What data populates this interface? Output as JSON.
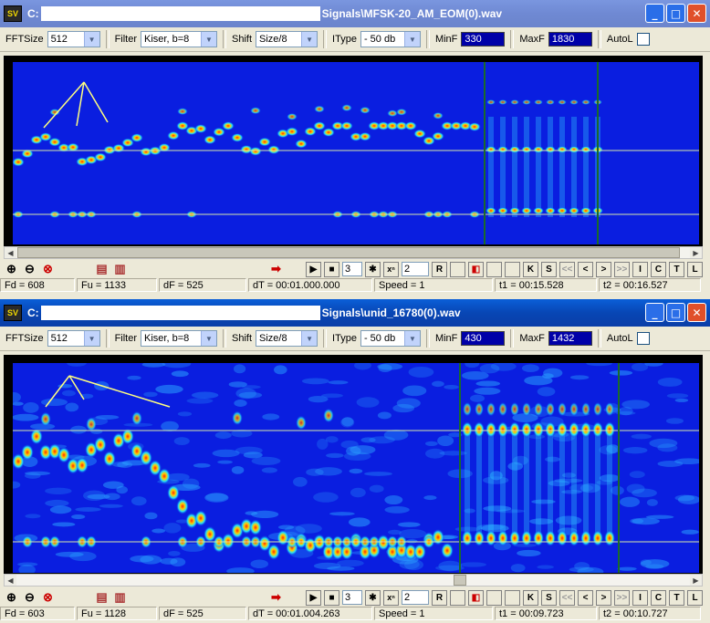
{
  "windows": [
    {
      "title_prefix": "C:",
      "title_file": "Signals\\MFSK-20_AM_EOM(0).wav",
      "fftsize_label": "FFTSize",
      "fftsize_value": "512",
      "filter_label": "Filter",
      "filter_value": "Kiser, b=8",
      "shift_label": "Shift",
      "shift_value": "Size/8",
      "itype_label": "IType",
      "itype_value": "- 50 db",
      "minf_label": "MinF",
      "minf_value": "330",
      "maxf_label": "MaxF",
      "maxf_value": "1830",
      "autol_label": "AutoL",
      "step_value": "3",
      "xn_value": "2",
      "status": {
        "fd": "Fd = 608",
        "fu": "Fu = 1133",
        "df": "dF = 525",
        "dt": "dT = 00:01.000.000",
        "speed": "Speed = 1",
        "t1": "t1 = 00:15.528",
        "t2": "t2 = 00:16.527"
      }
    },
    {
      "title_prefix": "C:",
      "title_file": "Signals\\unid_16780(0).wav",
      "fftsize_label": "FFTSize",
      "fftsize_value": "512",
      "filter_label": "Filter",
      "filter_value": "Kiser, b=8",
      "shift_label": "Shift",
      "shift_value": "Size/8",
      "itype_label": "IType",
      "itype_value": "- 50 db",
      "minf_label": "MinF",
      "minf_value": "430",
      "maxf_label": "MaxF",
      "maxf_value": "1432",
      "autol_label": "AutoL",
      "step_value": "3",
      "xn_value": "2",
      "status": {
        "fd": "Fd = 603",
        "fu": "Fu = 1128",
        "df": "dF = 525",
        "dt": "dT = 00:01.004.263",
        "speed": "Speed = 1",
        "t1": "t1 = 00:09.723",
        "t2": "t2 = 00:10.727"
      }
    }
  ],
  "buttons": {
    "r": "R",
    "k": "K",
    "s": "S",
    "prev2": "<<",
    "prev": "<",
    "next": ">",
    "next2": ">>",
    "i": "I",
    "c": "C",
    "t": "T",
    "l": "L",
    "xn": "xⁿ",
    "app_icon": "SV",
    "min": "_",
    "max": "□",
    "close": "✕"
  },
  "colors": {
    "spectro_bg": "#0a1ee0",
    "marker": "#d8e8a8",
    "cursor": "#1a6a2a",
    "annotation": "#ffff80"
  }
}
